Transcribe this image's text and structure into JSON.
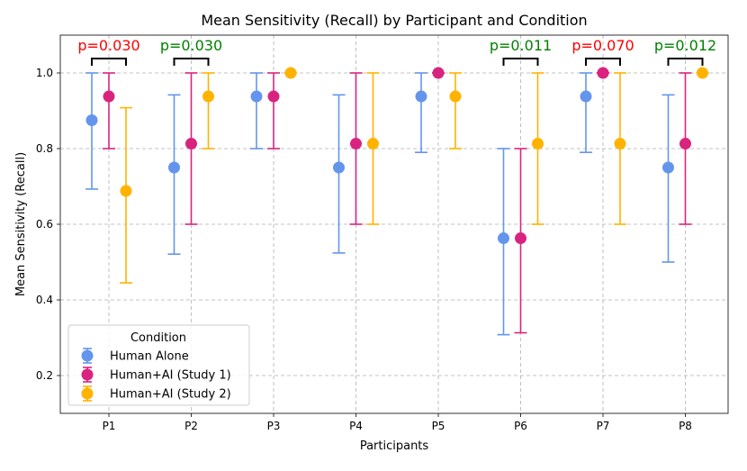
{
  "chart_data": {
    "type": "scatter",
    "title": "Mean Sensitivity (Recall) by Participant and Condition",
    "xlabel": "Participants",
    "ylabel": "Mean Sensitivity (Recall)",
    "ylim": [
      0.1,
      1.1
    ],
    "yticks": [
      "0.2",
      "0.4",
      "0.6",
      "0.8",
      "1.0"
    ],
    "ytick_values": [
      0.2,
      0.4,
      0.6,
      0.8,
      1.0
    ],
    "grid": true,
    "legend": {
      "title": "Condition",
      "placement": "lower-left"
    },
    "categories": [
      "P1",
      "P2",
      "P3",
      "P4",
      "P5",
      "P6",
      "P7",
      "P8"
    ],
    "series": [
      {
        "name": "Human Alone",
        "color": "#6495ED",
        "values": [
          0.875,
          0.75,
          0.938,
          0.75,
          0.938,
          0.563,
          0.938,
          0.75
        ],
        "err_low": [
          0.693,
          0.521,
          0.8,
          0.524,
          0.79,
          0.308,
          0.79,
          0.5
        ],
        "err_high": [
          1.0,
          0.942,
          1.0,
          0.942,
          1.0,
          0.8,
          1.0,
          0.942
        ]
      },
      {
        "name": "Human+AI (Study 1)",
        "color": "#D9247F",
        "values": [
          0.938,
          0.813,
          0.938,
          0.813,
          1.0,
          0.563,
          1.0,
          0.813
        ],
        "err_low": [
          0.8,
          0.6,
          0.8,
          0.6,
          1.0,
          0.313,
          1.0,
          0.6
        ],
        "err_high": [
          1.0,
          1.0,
          1.0,
          1.0,
          1.0,
          0.8,
          1.0,
          1.0
        ]
      },
      {
        "name": "Human+AI (Study 2)",
        "color": "#FFB300",
        "values": [
          0.688,
          0.938,
          1.0,
          0.813,
          0.938,
          0.813,
          0.813,
          1.0
        ],
        "err_low": [
          0.445,
          0.8,
          1.0,
          0.6,
          0.8,
          0.6,
          0.6,
          1.0
        ],
        "err_high": [
          0.908,
          1.0,
          1.0,
          1.0,
          1.0,
          1.0,
          1.0,
          1.0
        ]
      }
    ],
    "annotations": [
      {
        "category": "P1",
        "text": "p=0.030",
        "color": "#FF0000"
      },
      {
        "category": "P2",
        "text": "p=0.030",
        "color": "#008000"
      },
      {
        "category": "P6",
        "text": "p=0.011",
        "color": "#008000"
      },
      {
        "category": "P7",
        "text": "p=0.070",
        "color": "#FF0000"
      },
      {
        "category": "P8",
        "text": "p=0.012",
        "color": "#008000"
      }
    ]
  }
}
